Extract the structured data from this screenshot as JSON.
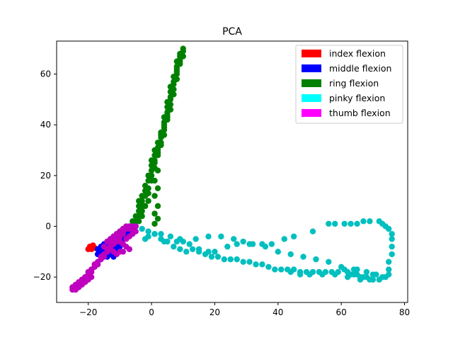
{
  "chart_data": {
    "type": "scatter",
    "title": "PCA",
    "xlabel": "",
    "ylabel": "",
    "xlim": [
      -30,
      81
    ],
    "ylim": [
      -30,
      73
    ],
    "x_ticks": [
      -20,
      0,
      20,
      40,
      60,
      80
    ],
    "x_tick_labels": [
      "−20",
      "0",
      "20",
      "40",
      "60",
      "80"
    ],
    "y_ticks": [
      -20,
      0,
      20,
      40,
      60
    ],
    "y_tick_labels": [
      "−20",
      "0",
      "20",
      "40",
      "60"
    ],
    "grid": false,
    "legend_position": "top-right",
    "legend": [
      {
        "label": "index flexion",
        "color": "#ff0000"
      },
      {
        "label": "middle flexion",
        "color": "#0000ff"
      },
      {
        "label": "ring flexion",
        "color": "#008000"
      },
      {
        "label": "pinky flexion",
        "color": "#00ffff"
      },
      {
        "label": "thumb flexion",
        "color": "#ff00ff"
      }
    ],
    "series": [
      {
        "name": "index flexion",
        "color": "#ff0000",
        "points": [
          [
            -20,
            -9
          ],
          [
            -19,
            -9
          ],
          [
            -18,
            -8.5
          ],
          [
            -18.5,
            -7.5
          ],
          [
            -19.5,
            -8
          ]
        ]
      },
      {
        "name": "middle flexion",
        "color": "#0000ff",
        "points": [
          [
            -17,
            -9
          ],
          [
            -16,
            -8
          ],
          [
            -16,
            -10
          ],
          [
            -15,
            -7
          ],
          [
            -15,
            -9
          ],
          [
            -15,
            -11
          ],
          [
            -14,
            -6
          ],
          [
            -14,
            -8
          ],
          [
            -14,
            -10
          ],
          [
            -13,
            -5
          ],
          [
            -13,
            -7
          ],
          [
            -13,
            -9
          ],
          [
            -13,
            -11
          ],
          [
            -12,
            -4
          ],
          [
            -12,
            -6
          ],
          [
            -12,
            -8
          ],
          [
            -12,
            -10
          ],
          [
            -11,
            -3
          ],
          [
            -11,
            -5
          ],
          [
            -11,
            -7
          ],
          [
            -11,
            -9
          ],
          [
            -10,
            -2
          ],
          [
            -10,
            -4
          ],
          [
            -10,
            -6
          ],
          [
            -10,
            -8
          ],
          [
            -9,
            -1
          ],
          [
            -9,
            -3
          ],
          [
            -9,
            -5
          ],
          [
            -8,
            -1
          ],
          [
            -8,
            -3
          ],
          [
            -7,
            0
          ],
          [
            -7,
            -2
          ],
          [
            -6,
            -1
          ],
          [
            -17,
            -11
          ],
          [
            -16,
            -12
          ],
          [
            -14,
            -12
          ],
          [
            -12,
            -12
          ]
        ]
      },
      {
        "name": "ring flexion",
        "color": "#008000",
        "points": [
          [
            -7,
            0
          ],
          [
            -6,
            -1
          ],
          [
            -5,
            0
          ],
          [
            -6,
            2
          ],
          [
            -5,
            4
          ],
          [
            -4,
            6
          ],
          [
            -4,
            8
          ],
          [
            -3,
            10
          ],
          [
            -3,
            12
          ],
          [
            -2,
            14
          ],
          [
            -2,
            16
          ],
          [
            -1,
            18
          ],
          [
            -1,
            20
          ],
          [
            0,
            22
          ],
          [
            0,
            24
          ],
          [
            0,
            26
          ],
          [
            1,
            28
          ],
          [
            1,
            30
          ],
          [
            2,
            31
          ],
          [
            2,
            33
          ],
          [
            3,
            35
          ],
          [
            3,
            37
          ],
          [
            4,
            39
          ],
          [
            4,
            41
          ],
          [
            4,
            43
          ],
          [
            5,
            45
          ],
          [
            5,
            47
          ],
          [
            5,
            49
          ],
          [
            6,
            51
          ],
          [
            6,
            53
          ],
          [
            6,
            55
          ],
          [
            7,
            57
          ],
          [
            7,
            59
          ],
          [
            8,
            61
          ],
          [
            8,
            63
          ],
          [
            8,
            65
          ],
          [
            9,
            67
          ],
          [
            9,
            68
          ],
          [
            10,
            69
          ],
          [
            10,
            70
          ],
          [
            9,
            65
          ],
          [
            8,
            60
          ],
          [
            7,
            54
          ],
          [
            6,
            48
          ],
          [
            5,
            43
          ],
          [
            4,
            38
          ],
          [
            3,
            33
          ],
          [
            2,
            28
          ],
          [
            1,
            23
          ],
          [
            0,
            18
          ],
          [
            -1,
            13
          ],
          [
            -2,
            8
          ],
          [
            -3,
            4
          ],
          [
            -4,
            2
          ],
          [
            -5,
            2
          ],
          [
            -4,
            4
          ],
          [
            -3,
            6
          ],
          [
            -2,
            8
          ],
          [
            -1,
            10
          ],
          [
            1,
            25
          ],
          [
            2,
            30
          ],
          [
            3,
            36
          ],
          [
            4,
            40
          ],
          [
            5,
            44
          ],
          [
            6,
            50
          ],
          [
            7,
            56
          ],
          [
            8,
            62
          ],
          [
            9,
            66
          ],
          [
            10,
            67
          ],
          [
            -2,
            12
          ],
          [
            -1,
            15
          ],
          [
            0,
            20
          ],
          [
            1,
            26
          ],
          [
            2,
            29
          ],
          [
            3,
            32
          ],
          [
            4,
            36
          ],
          [
            5,
            42
          ],
          [
            6,
            46
          ],
          [
            7,
            52
          ],
          [
            8,
            58
          ],
          [
            9,
            64
          ],
          [
            2,
            22
          ],
          [
            1,
            18
          ],
          [
            2,
            15
          ],
          [
            1,
            12
          ],
          [
            2,
            8
          ],
          [
            1,
            5
          ],
          [
            2,
            3
          ],
          [
            1,
            1
          ],
          [
            -3,
            8
          ],
          [
            -4,
            10
          ],
          [
            -2,
            12
          ]
        ]
      },
      {
        "name": "pinky flexion",
        "color": "#00bfbf",
        "points": [
          [
            -5,
            0
          ],
          [
            -3,
            -1
          ],
          [
            -1,
            -2
          ],
          [
            1,
            -3
          ],
          [
            3,
            -5
          ],
          [
            5,
            -6
          ],
          [
            7,
            -8
          ],
          [
            9,
            -9
          ],
          [
            11,
            -10
          ],
          [
            13,
            -9
          ],
          [
            15,
            -10
          ],
          [
            17,
            -11
          ],
          [
            19,
            -12
          ],
          [
            21,
            -12
          ],
          [
            23,
            -13
          ],
          [
            25,
            -13
          ],
          [
            27,
            -13
          ],
          [
            29,
            -14
          ],
          [
            31,
            -14
          ],
          [
            33,
            -15
          ],
          [
            35,
            -15
          ],
          [
            37,
            -16
          ],
          [
            39,
            -17
          ],
          [
            41,
            -17
          ],
          [
            43,
            -17
          ],
          [
            45,
            -17
          ],
          [
            47,
            -18
          ],
          [
            49,
            -18
          ],
          [
            51,
            -18
          ],
          [
            53,
            -18
          ],
          [
            55,
            -18
          ],
          [
            57,
            -18
          ],
          [
            59,
            -18
          ],
          [
            61,
            -17
          ],
          [
            62,
            -18
          ],
          [
            63,
            -19
          ],
          [
            64,
            -19
          ],
          [
            65,
            -19
          ],
          [
            66,
            -20
          ],
          [
            67,
            -20
          ],
          [
            68,
            -20
          ],
          [
            69,
            -21
          ],
          [
            70,
            -21
          ],
          [
            72,
            -21
          ],
          [
            74,
            -20
          ],
          [
            75,
            -19
          ],
          [
            75,
            -17
          ],
          [
            75,
            -14
          ],
          [
            76,
            -11
          ],
          [
            76,
            -8
          ],
          [
            76,
            -5
          ],
          [
            76,
            -3
          ],
          [
            75,
            -1
          ],
          [
            74,
            0
          ],
          [
            73,
            1
          ],
          [
            72,
            2
          ],
          [
            69,
            2
          ],
          [
            67,
            2
          ],
          [
            65,
            1
          ],
          [
            63,
            1
          ],
          [
            61,
            1
          ],
          [
            58,
            1
          ],
          [
            56,
            1
          ],
          [
            51,
            -2
          ],
          [
            45,
            -4
          ],
          [
            42,
            -5
          ],
          [
            38,
            -7
          ],
          [
            35,
            -7
          ],
          [
            31,
            -7
          ],
          [
            27,
            -7
          ],
          [
            24,
            -8
          ],
          [
            20,
            -10
          ],
          [
            18,
            -10
          ],
          [
            15,
            -9
          ],
          [
            12,
            -7
          ],
          [
            9,
            -5
          ],
          [
            6,
            -4
          ],
          [
            3,
            -3
          ],
          [
            1,
            -3
          ],
          [
            -1,
            -4
          ],
          [
            -2,
            -5
          ],
          [
            4,
            -6
          ],
          [
            8,
            -6
          ],
          [
            10,
            -6
          ],
          [
            14,
            -5
          ],
          [
            18,
            -4
          ],
          [
            22,
            -4
          ],
          [
            26,
            -5
          ],
          [
            29,
            -6
          ],
          [
            32,
            -7
          ],
          [
            36,
            -8
          ],
          [
            40,
            -10
          ],
          [
            44,
            -11
          ],
          [
            48,
            -12
          ],
          [
            52,
            -13
          ],
          [
            56,
            -14
          ],
          [
            60,
            -16
          ],
          [
            64,
            -17
          ],
          [
            68,
            -18
          ],
          [
            71,
            -19
          ],
          [
            73,
            -20
          ],
          [
            58,
            -19
          ],
          [
            54,
            -19
          ],
          [
            50,
            -19
          ],
          [
            47,
            -19
          ],
          [
            44,
            -18
          ],
          [
            62,
            -20
          ],
          [
            66,
            -21
          ],
          [
            65,
            -17
          ],
          [
            70,
            -19
          ]
        ]
      },
      {
        "name": "thumb flexion",
        "color": "#bf00bf",
        "points": [
          [
            -25,
            -24
          ],
          [
            -24,
            -24
          ],
          [
            -24,
            -23
          ],
          [
            -23,
            -23
          ],
          [
            -23,
            -22
          ],
          [
            -22,
            -22
          ],
          [
            -22,
            -21
          ],
          [
            -21,
            -21
          ],
          [
            -21,
            -20
          ],
          [
            -20,
            -19
          ],
          [
            -20,
            -18
          ],
          [
            -19,
            -18
          ],
          [
            -19,
            -17
          ],
          [
            -18,
            -16
          ],
          [
            -18,
            -15
          ],
          [
            -17,
            -15
          ],
          [
            -17,
            -14
          ],
          [
            -16,
            -13
          ],
          [
            -16,
            -12
          ],
          [
            -15,
            -12
          ],
          [
            -15,
            -11
          ],
          [
            -14,
            -10
          ],
          [
            -14,
            -9
          ],
          [
            -13,
            -9
          ],
          [
            -13,
            -8
          ],
          [
            -12,
            -7
          ],
          [
            -12,
            -6
          ],
          [
            -11,
            -6
          ],
          [
            -11,
            -5
          ],
          [
            -10,
            -4
          ],
          [
            -10,
            -3
          ],
          [
            -9,
            -3
          ],
          [
            -9,
            -2
          ],
          [
            -8,
            -1
          ],
          [
            -8,
            0
          ],
          [
            -7,
            0
          ],
          [
            -7,
            -1
          ],
          [
            -6,
            -1
          ],
          [
            -6,
            0
          ],
          [
            -5,
            0
          ],
          [
            -14,
            -6
          ],
          [
            -13,
            -5
          ],
          [
            -12,
            -4
          ],
          [
            -11,
            -3
          ],
          [
            -10,
            -2
          ],
          [
            -9,
            -1
          ],
          [
            -10,
            -6
          ],
          [
            -9,
            -7
          ],
          [
            -8,
            -8
          ],
          [
            -7,
            -9
          ],
          [
            -8,
            -5
          ],
          [
            -7,
            -4
          ],
          [
            -6,
            -3
          ],
          [
            -5,
            -2
          ],
          [
            -12,
            -10
          ],
          [
            -11,
            -11
          ],
          [
            -10,
            -10
          ],
          [
            -9,
            -10
          ],
          [
            -15,
            -8
          ],
          [
            -13,
            -7
          ],
          [
            -25,
            -25
          ],
          [
            -24,
            -25
          ],
          [
            -23,
            -24
          ],
          [
            -22,
            -23
          ],
          [
            -21,
            -22
          ],
          [
            -20,
            -21
          ],
          [
            -19,
            -20
          ]
        ]
      }
    ]
  }
}
